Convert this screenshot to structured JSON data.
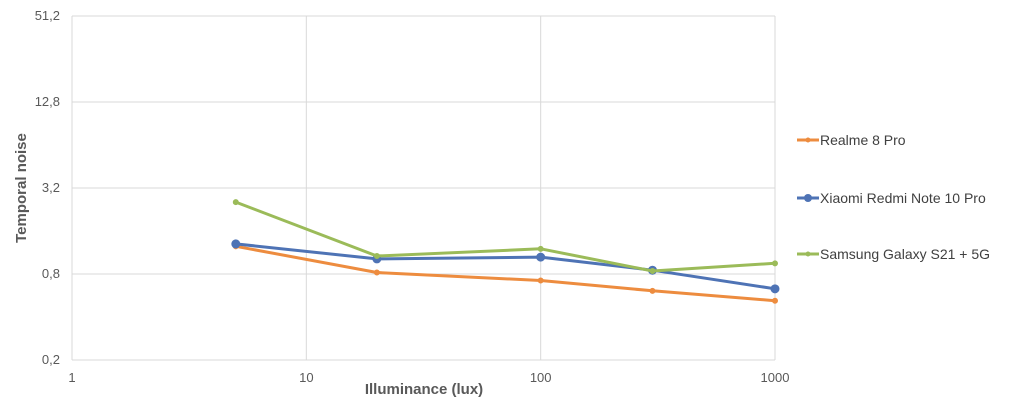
{
  "chart_data": {
    "type": "line",
    "xlabel": "Illuminance (lux)",
    "ylabel": "Temporal noise",
    "x_scale": "log10",
    "y_scale": "log2",
    "xlim": [
      1,
      1000
    ],
    "ylim": [
      0.2,
      51.2
    ],
    "x_ticks": [
      "1",
      "10",
      "100",
      "1000"
    ],
    "y_ticks": [
      "0,2",
      "0,8",
      "3,2",
      "12,8",
      "51,2"
    ],
    "x": [
      5,
      20,
      100,
      300,
      1000
    ],
    "grid": true,
    "legend_position": "right",
    "series": [
      {
        "name": "Realme 8 Pro",
        "color": "#ED8C3F",
        "values": [
          1.25,
          0.82,
          0.72,
          0.61,
          0.52
        ]
      },
      {
        "name": "Xiaomi Redmi Note 10 Pro",
        "color": "#4E73B5",
        "values": [
          1.3,
          1.02,
          1.05,
          0.85,
          0.63
        ]
      },
      {
        "name": "Samsung Galaxy S21 + 5G",
        "color": "#9BBB59",
        "values": [
          2.55,
          1.07,
          1.2,
          0.84,
          0.95
        ]
      }
    ]
  }
}
